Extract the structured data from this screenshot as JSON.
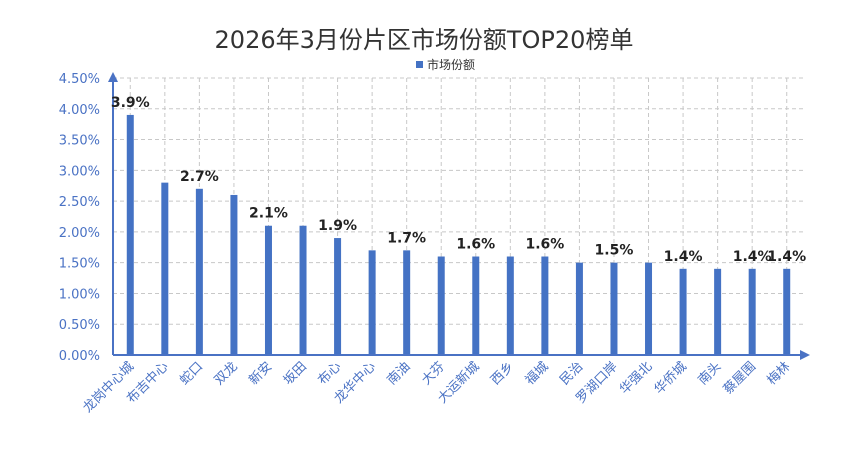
{
  "chart_data": {
    "type": "bar",
    "title": "2026年3月份片区市场份额TOP20榜单",
    "legend": {
      "label": "市场份额",
      "position": "top"
    },
    "xlabel": "",
    "ylabel": "",
    "ylim": [
      0,
      4.5
    ],
    "y_ticks": [
      "0.00%",
      "0.50%",
      "1.00%",
      "1.50%",
      "2.00%",
      "2.50%",
      "3.00%",
      "3.50%",
      "4.00%",
      "4.50%"
    ],
    "grid": true,
    "categories": [
      "龙岗中心城",
      "布吉中心",
      "蛇口",
      "双龙",
      "新安",
      "坂田",
      "布心",
      "龙华中心",
      "南油",
      "大芬",
      "大运新城",
      "西乡",
      "福城",
      "民治",
      "罗湖口岸",
      "华强北",
      "华侨城",
      "南头",
      "蔡屋围",
      "梅林"
    ],
    "series": [
      {
        "name": "市场份额",
        "values": [
          3.9,
          2.8,
          2.7,
          2.6,
          2.1,
          2.1,
          1.9,
          1.7,
          1.7,
          1.6,
          1.6,
          1.6,
          1.6,
          1.5,
          1.5,
          1.5,
          1.4,
          1.4,
          1.4,
          1.4
        ]
      }
    ],
    "data_labels": [
      {
        "index": 0,
        "text": "3.9%"
      },
      {
        "index": 2,
        "text": "2.7%"
      },
      {
        "index": 4,
        "text": "2.1%"
      },
      {
        "index": 6,
        "text": "1.9%"
      },
      {
        "index": 8,
        "text": "1.7%"
      },
      {
        "index": 10,
        "text": "1.6%"
      },
      {
        "index": 12,
        "text": "1.6%"
      },
      {
        "index": 14,
        "text": "1.5%"
      },
      {
        "index": 16,
        "text": "1.4%"
      },
      {
        "index": 18,
        "text": "1.4%"
      },
      {
        "index": 19,
        "text": "1.4%"
      }
    ],
    "colors": {
      "bar": "#4472c4",
      "axis": "#4a72c4",
      "grid": "#c8c8c8"
    }
  }
}
